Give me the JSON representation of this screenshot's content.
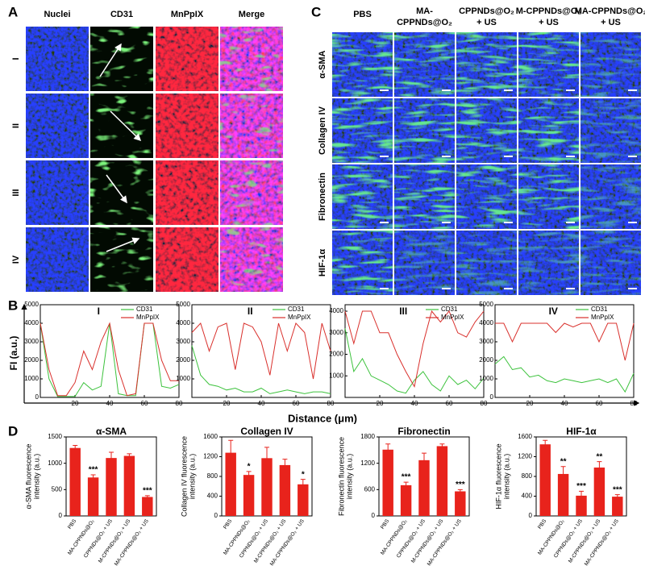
{
  "panel_labels": [
    "A",
    "B",
    "C",
    "D"
  ],
  "panel_a": {
    "columns": [
      "Nuclei",
      "CD31",
      "MnPpIX",
      "Merge"
    ],
    "rows": [
      "I",
      "II",
      "III",
      "IV"
    ]
  },
  "panel_c": {
    "columns": [
      [
        "PBS"
      ],
      [
        "MA-",
        "CPPNDs@O₂"
      ],
      [
        "CPPNDs@O₂",
        "+ US"
      ],
      [
        "M-CPPNDs@O₂",
        "+ US"
      ],
      [
        "MA-CPPNDs@O₂",
        "+ US"
      ]
    ],
    "rows": [
      "α-SMA",
      "Collagen IV",
      "Fibronectin",
      "HIF-1α"
    ]
  },
  "shared_labels": {
    "y": "FI (a.u.)",
    "x": "Distance (μm)"
  },
  "chart_data": [
    {
      "type": "line",
      "title": "I",
      "x": [
        0,
        5,
        10,
        15,
        20,
        25,
        30,
        35,
        40,
        45,
        50,
        55,
        60,
        65,
        70,
        75,
        80
      ],
      "series": [
        {
          "name": "CD31",
          "color": "#3cc23c",
          "values": [
            4000,
            1000,
            50,
            50,
            50,
            800,
            400,
            600,
            4000,
            200,
            100,
            100,
            4000,
            4000,
            600,
            500,
            700
          ]
        },
        {
          "name": "MnPpIX",
          "color": "#d9302c",
          "values": [
            4000,
            1500,
            100,
            100,
            800,
            2500,
            1500,
            3000,
            4000,
            1500,
            100,
            200,
            4000,
            4000,
            2000,
            900,
            900
          ]
        }
      ],
      "xlim": [
        0,
        80
      ],
      "xticks": [
        20,
        40,
        60,
        80
      ],
      "ylim": [
        0,
        5000
      ],
      "yticks": [
        0,
        1000,
        2000,
        3000,
        4000,
        5000
      ]
    },
    {
      "type": "line",
      "title": "II",
      "x": [
        0,
        5,
        10,
        15,
        20,
        25,
        30,
        35,
        40,
        45,
        50,
        55,
        60,
        65,
        70,
        75,
        80
      ],
      "series": [
        {
          "name": "CD31",
          "color": "#3cc23c",
          "values": [
            2800,
            1200,
            700,
            600,
            400,
            500,
            300,
            300,
            500,
            200,
            300,
            400,
            300,
            200,
            300,
            300,
            200
          ]
        },
        {
          "name": "MnPpIX",
          "color": "#d9302c",
          "values": [
            3500,
            4000,
            2500,
            3800,
            4000,
            1500,
            4000,
            3800,
            3000,
            1200,
            4000,
            2500,
            4000,
            3500,
            1000,
            4000,
            2500
          ]
        }
      ],
      "xlim": [
        0,
        80
      ],
      "xticks": [
        20,
        40,
        60,
        80
      ],
      "ylim": [
        0,
        5000
      ],
      "yticks": [
        1000,
        2000,
        3000,
        4000,
        5000
      ]
    },
    {
      "type": "line",
      "title": "III",
      "x": [
        0,
        5,
        10,
        15,
        20,
        25,
        30,
        35,
        40,
        45,
        50,
        55,
        60,
        65,
        70,
        75,
        80
      ],
      "series": [
        {
          "name": "CD31",
          "color": "#3cc23c",
          "values": [
            3200,
            1200,
            1800,
            1000,
            800,
            600,
            300,
            200,
            800,
            1200,
            600,
            300,
            1000,
            600,
            800,
            400,
            900
          ]
        },
        {
          "name": "MnPpIX",
          "color": "#d9302c",
          "values": [
            4000,
            2500,
            4000,
            4000,
            3000,
            3000,
            2000,
            1200,
            500,
            2500,
            4000,
            3500,
            4000,
            3000,
            2800,
            3500,
            4000
          ]
        }
      ],
      "xlim": [
        0,
        80
      ],
      "xticks": [
        20,
        40,
        60,
        80
      ],
      "ylim": [
        0,
        4300
      ],
      "yticks": [
        1000,
        2000,
        3000,
        4000
      ]
    },
    {
      "type": "line",
      "title": "IV",
      "x": [
        0,
        5,
        10,
        15,
        20,
        25,
        30,
        35,
        40,
        45,
        50,
        55,
        60,
        65,
        70,
        75,
        80
      ],
      "series": [
        {
          "name": "CD31",
          "color": "#3cc23c",
          "values": [
            1800,
            2200,
            1500,
            1600,
            1100,
            1200,
            900,
            800,
            1000,
            900,
            800,
            900,
            1000,
            800,
            1000,
            300,
            1300
          ]
        },
        {
          "name": "MnPpIX",
          "color": "#d9302c",
          "values": [
            4000,
            4000,
            3000,
            4000,
            4000,
            4000,
            4000,
            3500,
            4000,
            3800,
            4000,
            4000,
            3000,
            4000,
            4000,
            2000,
            4000
          ]
        }
      ],
      "xlim": [
        0,
        80
      ],
      "xticks": [
        20,
        40,
        60,
        80
      ],
      "ylim": [
        0,
        5000
      ],
      "yticks": [
        0,
        1000,
        2000,
        3000,
        4000,
        5000
      ]
    },
    {
      "type": "bar",
      "title": "α-SMA",
      "y_label": [
        "α-SMA fluorescence",
        "intensity (a.u.)"
      ],
      "color": "#e8231c",
      "categories": [
        "PBS",
        "MA-CPPNDs@O₂",
        "CPPNDs@O₂ + US",
        "M-CPPNDs@O₂ + US",
        "MA-CPPNDs@O₂ + US"
      ],
      "values": [
        1290,
        730,
        1100,
        1140,
        360
      ],
      "errors": [
        50,
        50,
        110,
        40,
        25
      ],
      "annotations": [
        null,
        "***",
        null,
        null,
        "***"
      ],
      "ylim": [
        0,
        1500
      ],
      "yticks": [
        0,
        500,
        1000,
        1500
      ]
    },
    {
      "type": "bar",
      "title": "Collagen IV",
      "y_label": [
        "Collagen IV fluorescence",
        "intensity (a.u.)"
      ],
      "color": "#e8231c",
      "categories": [
        "PBS",
        "MA-CPPNDs@O₂",
        "CPPNDs@O₂ + US",
        "M-CPPNDs@O₂ + US",
        "MA-CPPNDs@O₂ + US"
      ],
      "values": [
        1280,
        830,
        1170,
        1030,
        640
      ],
      "errors": [
        250,
        70,
        220,
        120,
        100
      ],
      "annotations": [
        null,
        "*",
        null,
        null,
        "*"
      ],
      "ylim": [
        0,
        1600
      ],
      "yticks": [
        0,
        400,
        800,
        1200,
        1600
      ]
    },
    {
      "type": "bar",
      "title": "Fibronectin",
      "y_label": [
        "Fibronectin fluorescence",
        "intensity (a.u.)"
      ],
      "color": "#e8231c",
      "categories": [
        "PBS",
        "MA-CPPNDs@O₂",
        "CPPNDs@O₂ + US",
        "M-CPPNDs@O₂ + US",
        "MA-CPPNDs@O₂ + US"
      ],
      "values": [
        1510,
        700,
        1270,
        1590,
        560
      ],
      "errors": [
        130,
        70,
        160,
        50,
        40
      ],
      "annotations": [
        null,
        "***",
        null,
        null,
        "***"
      ],
      "ylim": [
        0,
        1800
      ],
      "yticks": [
        0,
        600,
        1200,
        1800
      ]
    },
    {
      "type": "bar",
      "title": "HIF-1α",
      "y_label": [
        "HIF-1α fluorescence",
        "intensity (a.u.)"
      ],
      "color": "#e8231c",
      "categories": [
        "PBS",
        "MA-CPPNDs@O₂",
        "CPPNDs@O₂ + US",
        "M-CPPNDs@O₂ + US",
        "MA-CPPNDs@O₂ + US"
      ],
      "values": [
        1450,
        850,
        410,
        980,
        390
      ],
      "errors": [
        80,
        150,
        90,
        120,
        40
      ],
      "annotations": [
        null,
        "**",
        "***",
        "**",
        "***"
      ],
      "ylim": [
        0,
        1600
      ],
      "yticks": [
        0,
        400,
        800,
        1200,
        1600
      ]
    }
  ]
}
